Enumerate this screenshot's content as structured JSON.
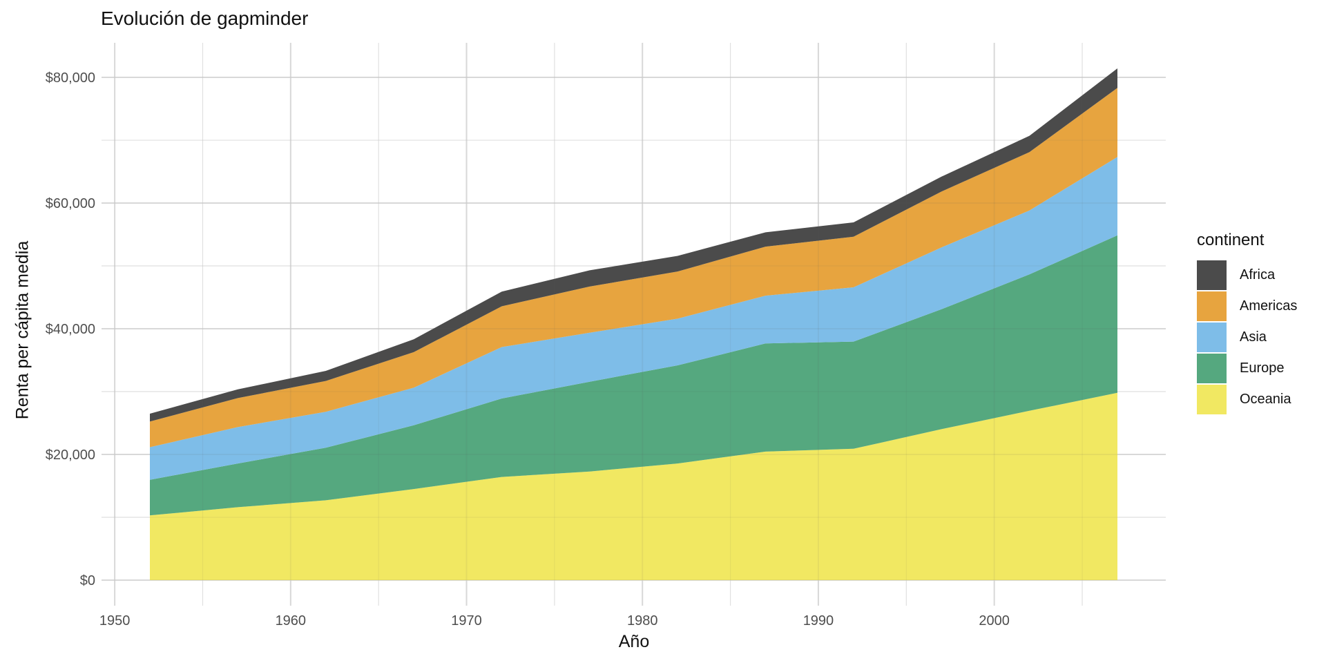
{
  "chart_data": {
    "type": "area",
    "stacked": true,
    "title": "Evolución de gapminder",
    "xlabel": "Año",
    "ylabel": "Renta per cápita media",
    "legend_title": "continent",
    "legend_position": "right",
    "grid": true,
    "background": "#FFFFFF",
    "x": [
      1952,
      1957,
      1962,
      1967,
      1972,
      1977,
      1982,
      1987,
      1992,
      1997,
      2002,
      2007
    ],
    "series": [
      {
        "name": "Africa",
        "color": "#4B4B4B",
        "values": [
          1252.6,
          1385.2,
          1598.1,
          2050.4,
          2339.6,
          2585.9,
          2481.6,
          2282.7,
          2281.8,
          2378.8,
          2599.4,
          3089.0
        ]
      },
      {
        "name": "Americas",
        "color": "#E7A43F",
        "values": [
          4079.1,
          4616.0,
          4901.5,
          5668.3,
          6491.3,
          7352.0,
          7506.7,
          7793.4,
          8044.9,
          8889.3,
          9287.7,
          11003.0
        ]
      },
      {
        "name": "Asia",
        "color": "#7EBDE8",
        "values": [
          5195.5,
          5787.7,
          5729.4,
          5971.2,
          8187.5,
          7791.3,
          7434.1,
          7608.2,
          8639.7,
          9834.1,
          10174.1,
          12473.0
        ]
      },
      {
        "name": "Europe",
        "color": "#55A87F",
        "values": [
          5661.1,
          6963.0,
          8365.5,
          10143.8,
          12479.6,
          14284.0,
          15617.9,
          17214.3,
          17061.6,
          19076.8,
          21711.7,
          25054.5
        ]
      },
      {
        "name": "Oceania",
        "color": "#F1E862",
        "values": [
          10298.1,
          11598.5,
          12696.5,
          14495.0,
          16417.3,
          17284.0,
          18554.7,
          20448.0,
          20894.0,
          24024.2,
          26938.8,
          29810.2
        ]
      }
    ],
    "stack_order_bottom_to_top": [
      "Oceania",
      "Europe",
      "Asia",
      "Americas",
      "Africa"
    ],
    "x_ticks": [
      {
        "value": 1950,
        "label": "1950"
      },
      {
        "value": 1960,
        "label": "1960"
      },
      {
        "value": 1970,
        "label": "1970"
      },
      {
        "value": 1980,
        "label": "1980"
      },
      {
        "value": 1990,
        "label": "1990"
      },
      {
        "value": 2000,
        "label": "2000"
      }
    ],
    "x_minor_ticks": [
      1955,
      1965,
      1975,
      1985,
      1995,
      2005
    ],
    "y_ticks": [
      {
        "value": 0,
        "label": "$0"
      },
      {
        "value": 20000,
        "label": "$20,000"
      },
      {
        "value": 40000,
        "label": "$40,000"
      },
      {
        "value": 60000,
        "label": "$60,000"
      },
      {
        "value": 80000,
        "label": "$80,000"
      }
    ],
    "y_minor_ticks": [
      10000,
      30000,
      50000,
      70000
    ],
    "xlim": [
      1949.25,
      2009.75
    ],
    "ylim": [
      -4071,
      85501
    ]
  },
  "colors": {
    "grid_major": "#E3E3E3",
    "grid_minor": "#ECECEC",
    "tick_label": "#4D4D4D",
    "text": "#111111"
  }
}
